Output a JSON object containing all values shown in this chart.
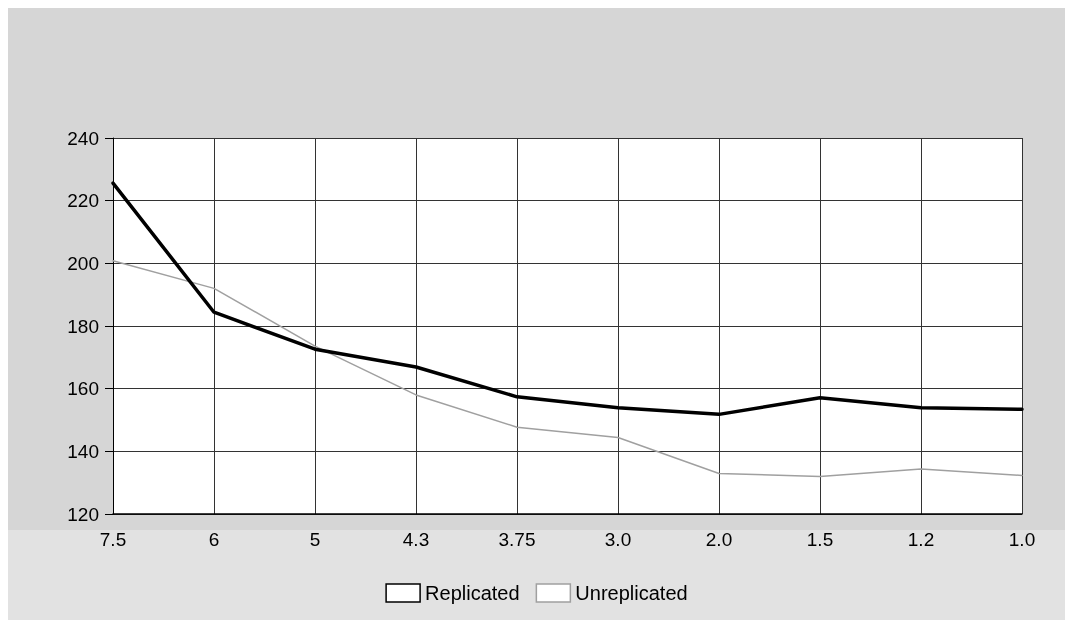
{
  "chart_data": {
    "type": "line",
    "categories": [
      "7.5",
      "6",
      "5",
      "4.3",
      "3.75",
      "3.0",
      "2.0",
      "1.5",
      "1.2",
      "1.0"
    ],
    "series": [
      {
        "name": "Replicated",
        "color": "#000000",
        "values": [
          225.6,
          184.4,
          172.6,
          166.9,
          157.4,
          153.9,
          151.8,
          157.1,
          153.9,
          153.4
        ]
      },
      {
        "name": "Unreplicated",
        "color": "#a0a0a0",
        "values": [
          200.8,
          192,
          173.6,
          158,
          147.7,
          144.4,
          132.9,
          132,
          134.4,
          132.3
        ]
      }
    ],
    "ylim": [
      120,
      240
    ],
    "yticks": [
      120,
      140,
      160,
      180,
      200,
      220,
      240
    ],
    "grid": true,
    "legend": "bottom",
    "marker": "none",
    "line_style": "solid"
  }
}
